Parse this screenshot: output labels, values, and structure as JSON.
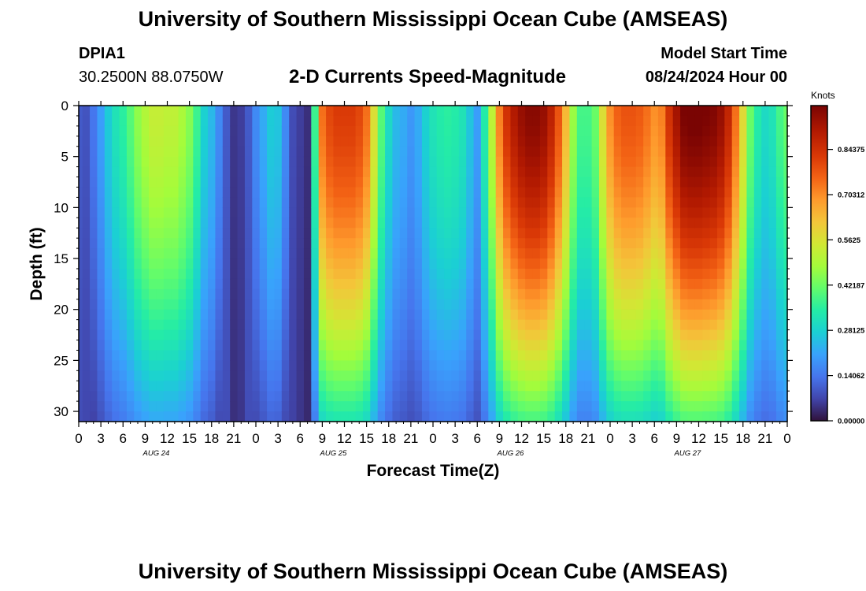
{
  "header": {
    "title": "University of Southern Mississippi Ocean Cube (AMSEAS)",
    "station": "DPIA1",
    "coords": "30.2500N  88.0750W",
    "subtitle": "2-D Currents Speed-Magnitude",
    "start_label": "Model Start Time",
    "start_time": "08/24/2024 Hour 00"
  },
  "footer": {
    "title": "University of Southern Mississippi Ocean Cube (AMSEAS)"
  },
  "chart_data": {
    "type": "heatmap",
    "title": "2-D Currents Speed-Magnitude",
    "xlabel": "Forecast Time(Z)",
    "ylabel": "Depth (ft)",
    "x_hours_range": [
      0,
      96
    ],
    "ylim": [
      0,
      31
    ],
    "x_tick_labels": [
      "0",
      "3",
      "6",
      "9",
      "12",
      "15",
      "18",
      "21",
      "0",
      "3",
      "6",
      "9",
      "12",
      "15",
      "18",
      "21",
      "0",
      "3",
      "6",
      "9",
      "12",
      "15",
      "18",
      "21",
      "0",
      "3",
      "6",
      "9",
      "12",
      "15",
      "18",
      "21",
      "0"
    ],
    "day_labels": [
      "AUG 24",
      "AUG 25",
      "AUG 26",
      "AUG 27"
    ],
    "y_ticks": [
      0,
      5,
      10,
      15,
      20,
      25,
      30
    ],
    "colorbar": {
      "title": "Knots",
      "ticks": [
        "0.84375",
        "0.70312",
        "0.5625",
        "0.42187",
        "0.28125",
        "0.14062",
        "0.00000"
      ],
      "range": [
        0,
        0.98
      ]
    },
    "surface_profile": {
      "hours": [
        0,
        1,
        2,
        3,
        4,
        5,
        6,
        7,
        8,
        9,
        10,
        11,
        12,
        13,
        14,
        15,
        16,
        17,
        18,
        19,
        20,
        21,
        22,
        23,
        24,
        25,
        26,
        27,
        28,
        29,
        30,
        31,
        32,
        33,
        34,
        35,
        36,
        37,
        38,
        39,
        40,
        41,
        42,
        43,
        44,
        45,
        46,
        47,
        48,
        49,
        50,
        51,
        52,
        53,
        54,
        55,
        56,
        57,
        58,
        59,
        60,
        61,
        62,
        63,
        64,
        65,
        66,
        67,
        68,
        69,
        70,
        71,
        72,
        73,
        74,
        75,
        76,
        77,
        78,
        79,
        80,
        81,
        82,
        83,
        84,
        85,
        86,
        87,
        88,
        89,
        90,
        91,
        92,
        93,
        94,
        95,
        96
      ],
      "speed_knots": [
        0.1,
        0.09,
        0.12,
        0.18,
        0.25,
        0.3,
        0.33,
        0.38,
        0.44,
        0.48,
        0.51,
        0.51,
        0.5,
        0.5,
        0.47,
        0.43,
        0.35,
        0.26,
        0.22,
        0.15,
        0.1,
        0.05,
        0.06,
        0.1,
        0.15,
        0.2,
        0.25,
        0.24,
        0.15,
        0.08,
        0.06,
        0.04,
        0.35,
        0.72,
        0.78,
        0.8,
        0.8,
        0.8,
        0.78,
        0.72,
        0.55,
        0.38,
        0.28,
        0.22,
        0.2,
        0.17,
        0.2,
        0.26,
        0.3,
        0.32,
        0.33,
        0.32,
        0.3,
        0.24,
        0.18,
        0.32,
        0.5,
        0.7,
        0.82,
        0.88,
        0.92,
        0.94,
        0.94,
        0.92,
        0.86,
        0.76,
        0.62,
        0.45,
        0.36,
        0.36,
        0.4,
        0.55,
        0.68,
        0.74,
        0.76,
        0.76,
        0.75,
        0.72,
        0.68,
        0.7,
        0.82,
        0.9,
        0.96,
        0.97,
        0.97,
        0.96,
        0.95,
        0.92,
        0.85,
        0.72,
        0.56,
        0.4,
        0.32,
        0.28,
        0.3,
        0.36,
        0.4
      ]
    }
  }
}
